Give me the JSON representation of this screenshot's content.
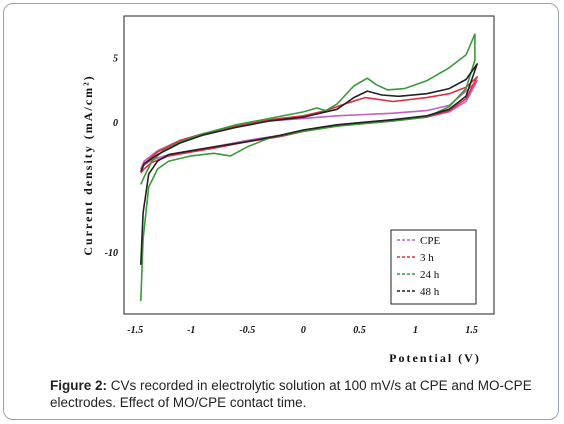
{
  "chart_data": {
    "type": "line",
    "xlabel": "Potential (V)",
    "ylabel": "Current density (mA/cm²)",
    "xlim": [
      -1.6,
      1.7
    ],
    "ylim": [
      -14.8,
      8.2
    ],
    "x_ticks": [
      -1.5,
      -1,
      -0.5,
      0,
      0.5,
      1,
      1.5
    ],
    "x_tick_labels": [
      "-1.5",
      "-1",
      "-0.5",
      "0",
      "0.5",
      "1",
      "1.5"
    ],
    "y_ticks": [
      5,
      0,
      -10
    ],
    "y_tick_labels": [
      "5",
      "0",
      "-10"
    ],
    "legend_position": "bottom-right",
    "grid": false,
    "series": [
      {
        "name": "CPE",
        "color": "#c060c0",
        "x": [
          -1.45,
          -1.42,
          -1.35,
          -1.2,
          -1.0,
          -0.8,
          -0.5,
          -0.2,
          0.0,
          0.3,
          0.55,
          0.8,
          1.1,
          1.3,
          1.45,
          1.55,
          1.55,
          1.45,
          1.3,
          1.1,
          0.8,
          0.55,
          0.3,
          0.0,
          -0.3,
          -0.6,
          -0.9,
          -1.1,
          -1.3,
          -1.42,
          -1.45
        ],
        "y": [
          -3.6,
          -3.3,
          -2.9,
          -2.5,
          -2.2,
          -1.9,
          -1.4,
          -1.0,
          -0.6,
          -0.2,
          0.0,
          0.2,
          0.4,
          0.8,
          1.6,
          3.2,
          3.2,
          2.4,
          1.3,
          0.9,
          0.7,
          0.6,
          0.5,
          0.3,
          0.1,
          -0.3,
          -0.9,
          -1.4,
          -2.2,
          -3.0,
          -3.6
        ]
      },
      {
        "name": "3 h",
        "color": "#e03040",
        "x": [
          -1.45,
          -1.42,
          -1.35,
          -1.2,
          -1.0,
          -0.8,
          -0.5,
          -0.2,
          0.0,
          0.3,
          0.55,
          0.8,
          1.1,
          1.3,
          1.45,
          1.55,
          1.55,
          1.45,
          1.3,
          1.1,
          0.8,
          0.55,
          0.4,
          0.2,
          0.0,
          -0.3,
          -0.6,
          -0.9,
          -1.1,
          -1.3,
          -1.42,
          -1.45
        ],
        "y": [
          -3.9,
          -3.6,
          -3.1,
          -2.6,
          -2.3,
          -2.0,
          -1.5,
          -1.1,
          -0.7,
          -0.3,
          -0.1,
          0.1,
          0.4,
          0.9,
          1.8,
          3.5,
          3.5,
          2.7,
          2.2,
          1.9,
          1.6,
          1.9,
          1.5,
          0.9,
          0.5,
          0.2,
          -0.3,
          -0.9,
          -1.4,
          -2.3,
          -3.2,
          -3.9
        ]
      },
      {
        "name": "24 h",
        "color": "#3a9a3a",
        "x": [
          -1.45,
          -1.43,
          -1.38,
          -1.3,
          -1.2,
          -1.0,
          -0.8,
          -0.65,
          -0.5,
          -0.3,
          0.0,
          0.3,
          0.55,
          0.8,
          1.1,
          1.3,
          1.45,
          1.53,
          1.53,
          1.45,
          1.3,
          1.1,
          0.9,
          0.75,
          0.65,
          0.57,
          0.45,
          0.3,
          0.2,
          0.12,
          0.0,
          -0.3,
          -0.6,
          -0.9,
          -1.1,
          -1.25,
          -1.35,
          -1.42,
          -1.45
        ],
        "y": [
          -13.8,
          -9.0,
          -5.0,
          -3.6,
          -3.0,
          -2.6,
          -2.4,
          -2.6,
          -1.9,
          -1.2,
          -0.7,
          -0.3,
          -0.1,
          0.1,
          0.4,
          1.2,
          2.6,
          4.8,
          6.8,
          5.2,
          4.2,
          3.2,
          2.6,
          2.5,
          2.9,
          3.4,
          2.8,
          1.4,
          0.9,
          1.1,
          0.8,
          0.3,
          -0.2,
          -0.9,
          -1.5,
          -2.2,
          -3.0,
          -4.2,
          -4.8
        ]
      },
      {
        "name": "48 h",
        "color": "#222222",
        "x": [
          -1.45,
          -1.43,
          -1.38,
          -1.3,
          -1.2,
          -1.0,
          -0.8,
          -0.5,
          -0.2,
          0.0,
          0.3,
          0.55,
          0.8,
          1.1,
          1.3,
          1.45,
          1.55,
          1.55,
          1.45,
          1.3,
          1.1,
          0.85,
          0.7,
          0.57,
          0.45,
          0.3,
          0.0,
          -0.3,
          -0.6,
          -0.9,
          -1.1,
          -1.3,
          -1.42,
          -1.45
        ],
        "y": [
          -11.0,
          -7.0,
          -4.0,
          -3.0,
          -2.5,
          -2.2,
          -1.9,
          -1.5,
          -1.0,
          -0.6,
          -0.2,
          0.0,
          0.2,
          0.5,
          1.0,
          2.0,
          4.5,
          4.5,
          3.3,
          2.6,
          2.2,
          2.0,
          2.1,
          2.4,
          1.9,
          1.0,
          0.4,
          0.1,
          -0.4,
          -1.0,
          -1.6,
          -2.5,
          -3.2,
          -3.8
        ]
      }
    ]
  },
  "caption": {
    "label": "Figure 2:",
    "text": " CVs recorded in electrolytic solution at 100 mV/s at CPE and MO-CPE electrodes. Effect of MO/CPE contact time."
  }
}
